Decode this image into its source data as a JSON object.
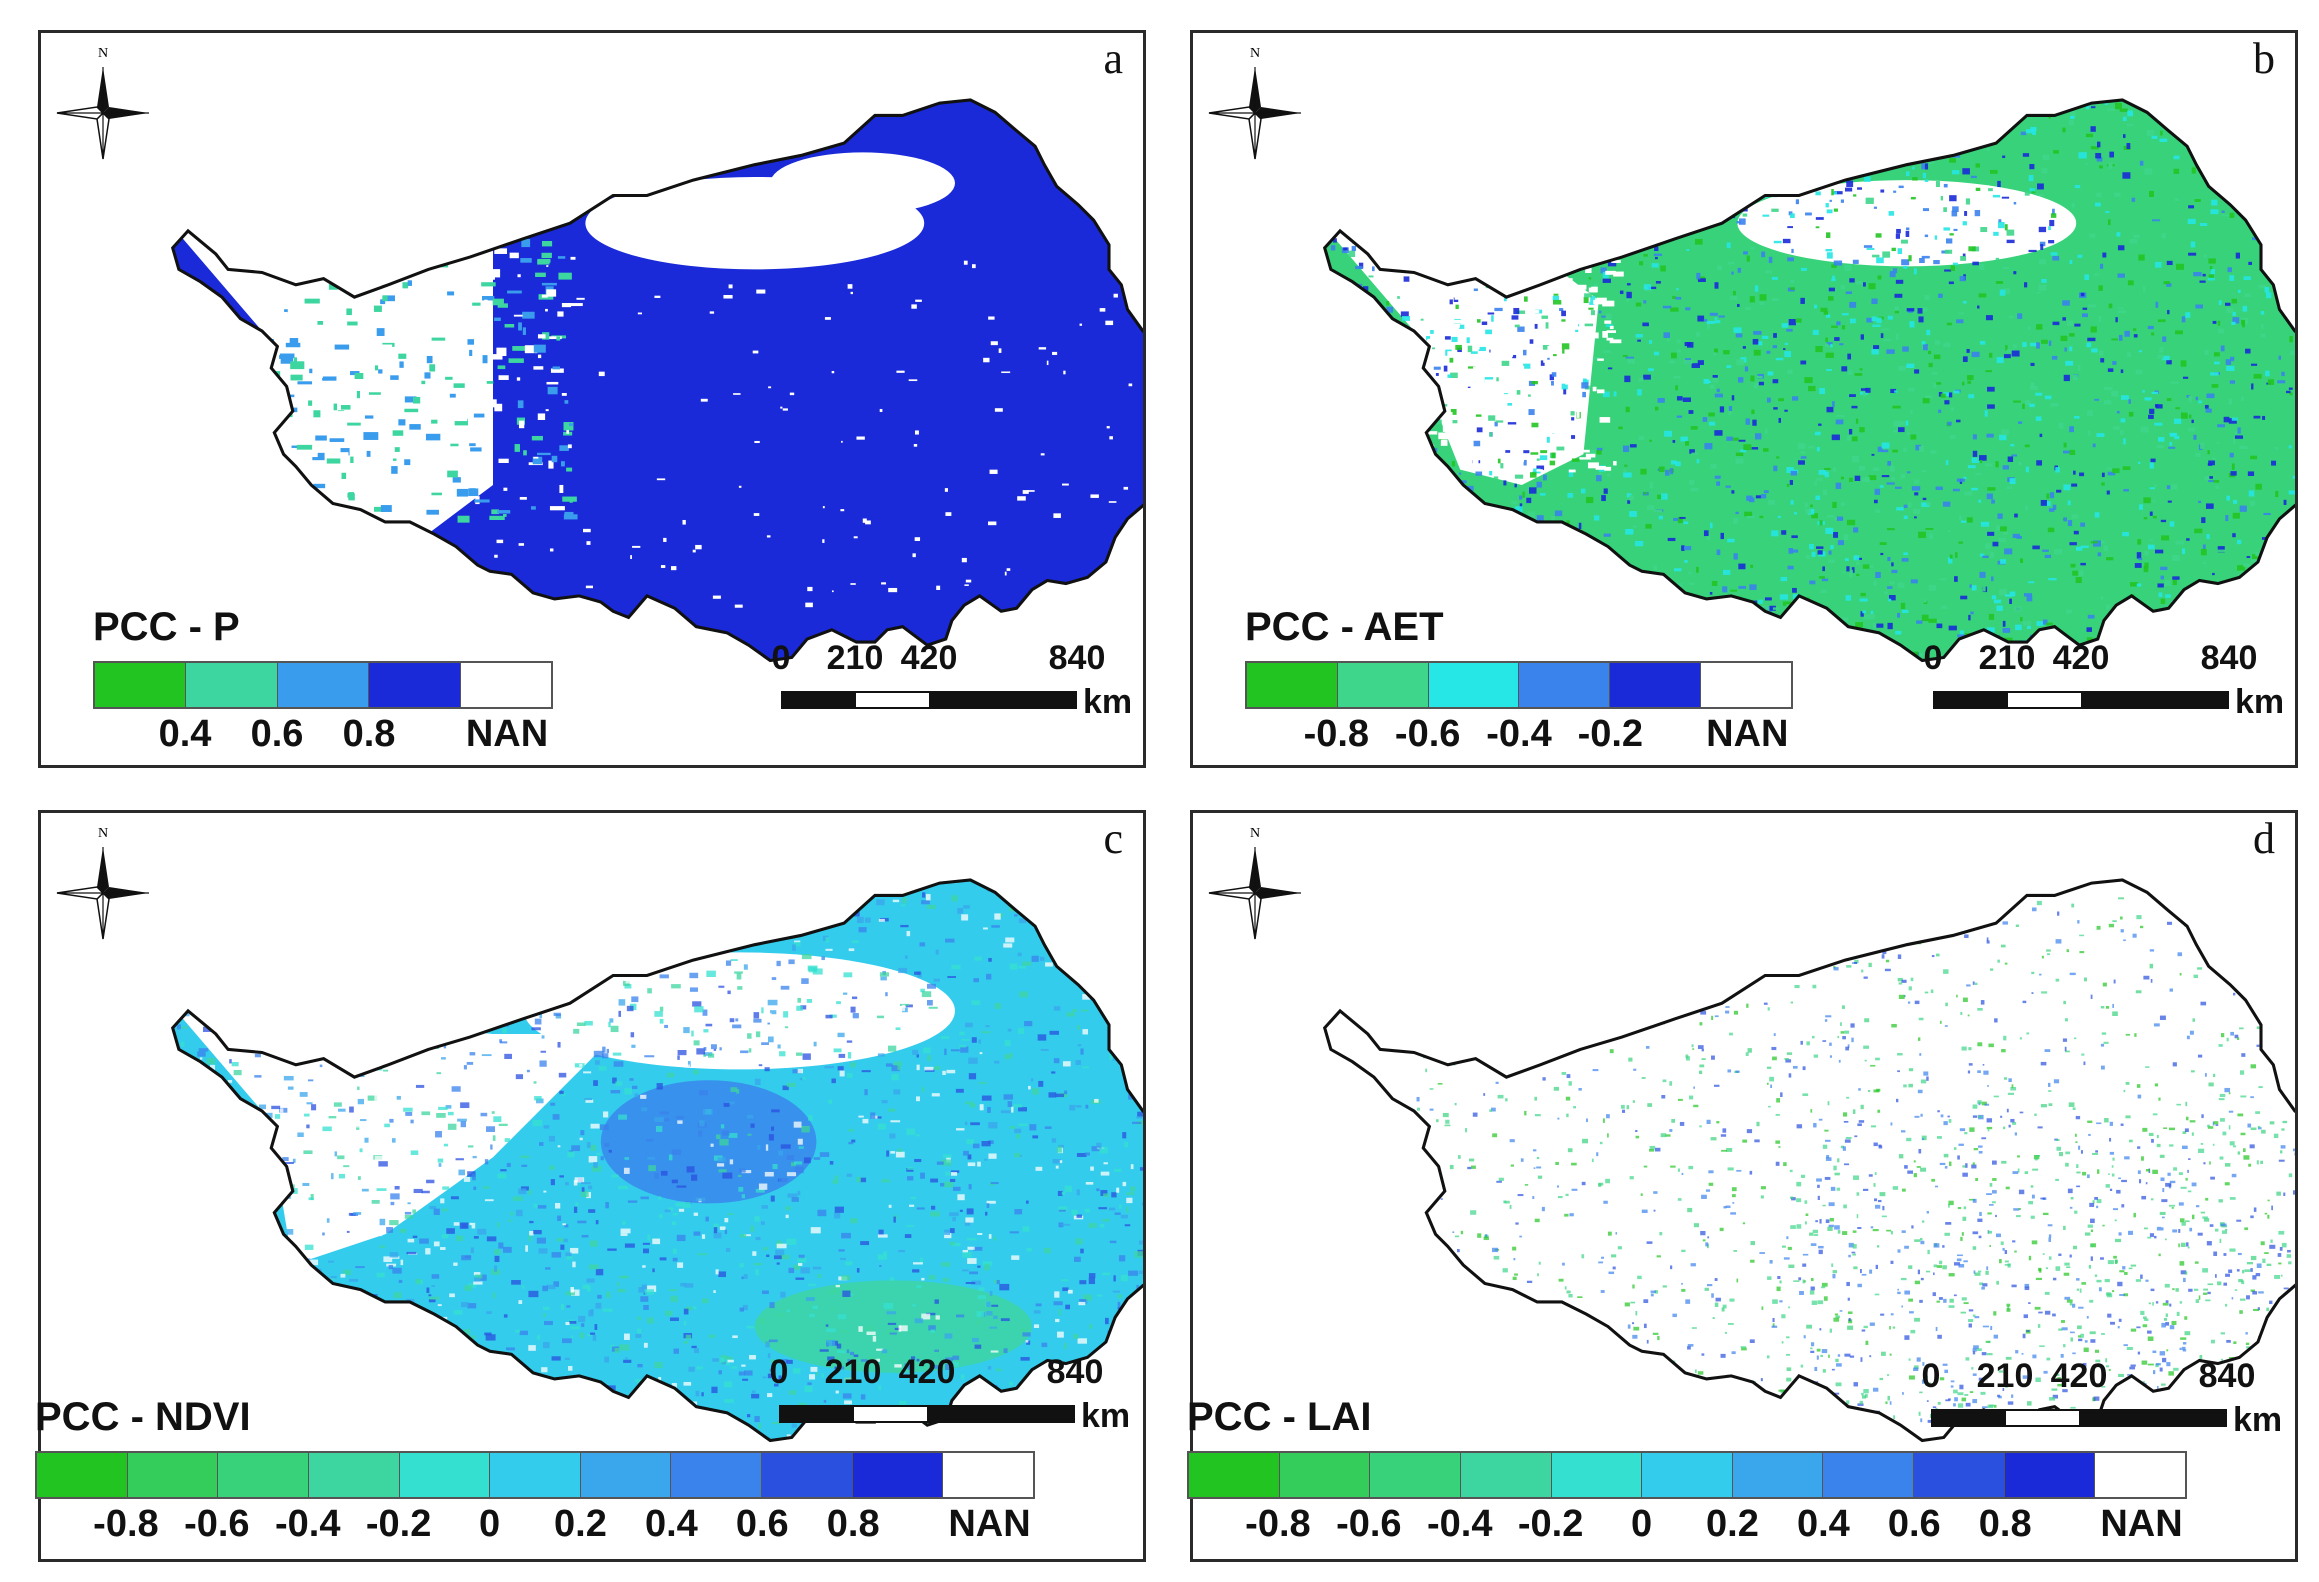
{
  "figure": {
    "panels": [
      {
        "id": "a",
        "letter": "a",
        "legend_title": "PCC - P",
        "legend_colors": [
          "#22c422",
          "#3ed6a0",
          "#3a9cec",
          "#1a2ad8",
          "#ffffff"
        ],
        "legend_ticks": [
          "0.4",
          "0.6",
          "0.8",
          "NAN"
        ],
        "tick_positions": "boundaries",
        "map_style": "p"
      },
      {
        "id": "b",
        "letter": "b",
        "legend_title": "PCC - AET",
        "legend_colors": [
          "#22c422",
          "#3ed68a",
          "#26e6e6",
          "#3a82ec",
          "#1a2ad8",
          "#ffffff"
        ],
        "legend_ticks": [
          "-0.8",
          "-0.6",
          "-0.4",
          "-0.2",
          "NAN"
        ],
        "tick_positions": "boundaries",
        "map_style": "aet"
      },
      {
        "id": "c",
        "letter": "c",
        "legend_title": "PCC - NDVI",
        "legend_colors": [
          "#22c422",
          "#34cc5a",
          "#38d27a",
          "#3ed6a0",
          "#34e0d0",
          "#34ccec",
          "#3aa6ec",
          "#3a82ec",
          "#2a50e0",
          "#1a2ad8",
          "#ffffff"
        ],
        "legend_ticks": [
          "-0.8",
          "-0.6",
          "-0.4",
          "-0.2",
          "0",
          "0.2",
          "0.4",
          "0.6",
          "0.8",
          "NAN"
        ],
        "tick_positions": "boundaries",
        "map_style": "ndvi"
      },
      {
        "id": "d",
        "letter": "d",
        "legend_title": "PCC - LAI",
        "legend_colors": [
          "#22c422",
          "#34cc5a",
          "#38d27a",
          "#3ed6a0",
          "#34e0d0",
          "#34ccec",
          "#3aa6ec",
          "#3a82ec",
          "#2a50e0",
          "#1a2ad8",
          "#ffffff"
        ],
        "legend_ticks": [
          "-0.8",
          "-0.6",
          "-0.4",
          "-0.2",
          "0",
          "0.2",
          "0.4",
          "0.6",
          "0.8",
          "NAN"
        ],
        "tick_positions": "boundaries",
        "map_style": "lai"
      }
    ],
    "scale_bar": {
      "labels": [
        "0",
        "210",
        "420",
        "840"
      ],
      "unit": "km"
    },
    "north_label": "N"
  }
}
